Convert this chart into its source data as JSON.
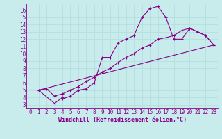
{
  "xlabel": "Windchill (Refroidissement éolien,°C)",
  "bg_color": "#c8ecec",
  "line_color": "#880088",
  "grid_color": "#b0dddd",
  "xlim": [
    -0.5,
    23.5
  ],
  "ylim": [
    2.5,
    16.8
  ],
  "xticks": [
    0,
    1,
    2,
    3,
    4,
    5,
    6,
    7,
    8,
    9,
    10,
    11,
    12,
    13,
    14,
    15,
    16,
    17,
    18,
    19,
    20,
    21,
    22,
    23
  ],
  "yticks": [
    3,
    4,
    5,
    6,
    7,
    8,
    9,
    10,
    11,
    12,
    13,
    14,
    15,
    16
  ],
  "line1_x": [
    1,
    3,
    4,
    4,
    5,
    6,
    7,
    8,
    9,
    10,
    11,
    12,
    13,
    14,
    15,
    16,
    17,
    18,
    19,
    20,
    21,
    22,
    23
  ],
  "line1_y": [
    5,
    3.2,
    4,
    3.8,
    4.2,
    5,
    5.2,
    6,
    9.5,
    9.5,
    11.5,
    12,
    12.5,
    15,
    16.2,
    16.5,
    15,
    12,
    12,
    13.5,
    13,
    12.5,
    11.2
  ],
  "line2_x": [
    1,
    2,
    3,
    4,
    5,
    6,
    7,
    8,
    9,
    10,
    11,
    12,
    13,
    14,
    15,
    16,
    17,
    18,
    19,
    20,
    21,
    22,
    23
  ],
  "line2_y": [
    5,
    5.2,
    4.2,
    4.5,
    5,
    5.5,
    6.2,
    6.8,
    7.5,
    8,
    8.8,
    9.5,
    10,
    10.8,
    11.2,
    12,
    12.2,
    12.5,
    13.2,
    13.5,
    13,
    12.5,
    11.2
  ],
  "line3_x": [
    1,
    23
  ],
  "line3_y": [
    5,
    11.2
  ],
  "marker": "+",
  "tick_fontsize": 5.5,
  "xlabel_fontsize": 6.0
}
